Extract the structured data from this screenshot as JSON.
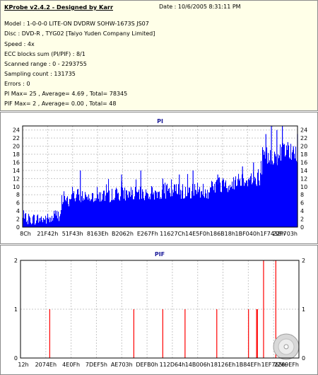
{
  "header": {
    "title": "KProbe v2.4.2 - Designed by Karr",
    "date": "Date : 10/6/2005 8:31:11 PM",
    "lines": [
      "Model : 1-0-0-0 LITE-ON DVDRW SOHW-1673S JS07",
      "Disc : DVD-R , TYG02 [Taiyo Yuden Company Limited]",
      "Speed : 4x",
      "ECC blocks sum (PI/PIF) : 8/1",
      "Scanned range : 0 - 2293755",
      "Sampling count : 131735",
      "Errors : 0",
      "PI Max= 25 , Average= 4.69 , Total= 78345",
      "PIF Max= 2 , Average= 0.00 , Total= 48"
    ]
  },
  "colors": {
    "pi_fill": "#0000ff",
    "pif_bar": "#ff0000",
    "grid": "#c8c8c8",
    "info_bg": "#ffffe8"
  },
  "chart_data": [
    {
      "type": "area",
      "title": "PI",
      "ylim": [
        0,
        25
      ],
      "yticks": [
        0,
        2,
        4,
        6,
        8,
        10,
        12,
        14,
        16,
        18,
        20,
        22,
        24
      ],
      "x_tick_labels": [
        "8Ch",
        "21F42h",
        "51F43h",
        "8163Eh",
        "B2062h",
        "E267Fh",
        "11627Ch",
        "14E5F0h",
        "186B18h",
        "1BF040h",
        "1F7438h",
        "22F703h"
      ],
      "grid": true,
      "segments": [
        {
          "x": [
            0.0,
            0.11
          ],
          "low": 0.5,
          "high": 3.5
        },
        {
          "x": [
            0.11,
            0.14
          ],
          "low": 1.5,
          "high": 4.5
        },
        {
          "x": [
            0.14,
            0.17
          ],
          "low": 5.0,
          "high": 8.0
        },
        {
          "x": [
            0.17,
            0.32
          ],
          "low": 6.0,
          "high": 9.5
        },
        {
          "x": [
            0.32,
            0.5
          ],
          "low": 6.5,
          "high": 10.0
        },
        {
          "x": [
            0.5,
            0.68
          ],
          "low": 7.0,
          "high": 11.0
        },
        {
          "x": [
            0.68,
            0.77
          ],
          "low": 8.5,
          "high": 12.5
        },
        {
          "x": [
            0.77,
            0.87
          ],
          "low": 10.0,
          "high": 14.0
        },
        {
          "x": [
            0.87,
            0.93
          ],
          "low": 15.0,
          "high": 20.0
        },
        {
          "x": [
            0.93,
            1.0
          ],
          "low": 16.0,
          "high": 21.0
        }
      ],
      "spikes": [
        {
          "x": 0.21,
          "y": 14
        },
        {
          "x": 0.36,
          "y": 13
        },
        {
          "x": 0.43,
          "y": 14
        },
        {
          "x": 0.51,
          "y": 12
        },
        {
          "x": 0.57,
          "y": 13
        },
        {
          "x": 0.62,
          "y": 14
        },
        {
          "x": 0.71,
          "y": 13
        },
        {
          "x": 0.8,
          "y": 15
        },
        {
          "x": 0.84,
          "y": 16
        },
        {
          "x": 0.885,
          "y": 23
        },
        {
          "x": 0.905,
          "y": 25
        },
        {
          "x": 0.925,
          "y": 24
        },
        {
          "x": 0.945,
          "y": 25
        },
        {
          "x": 0.965,
          "y": 21
        },
        {
          "x": 0.985,
          "y": 20
        },
        {
          "x": 1.0,
          "y": 23
        }
      ]
    },
    {
      "type": "bar",
      "title": "PIF",
      "ylim": [
        0,
        2
      ],
      "yticks": [
        0,
        1,
        2
      ],
      "x_tick_labels": [
        "12h",
        "2074Eh",
        "4E0Fh",
        "7DEF5h",
        "AE703h",
        "DEFB0h",
        "112D64h",
        "14B006h",
        "18126Eh",
        "1B84EFh",
        "1EF765h",
        "2269EFh"
      ],
      "grid": true,
      "x": [
        0.105,
        0.407,
        0.511,
        0.591,
        0.705,
        0.819,
        0.848,
        0.851,
        0.873,
        0.917
      ],
      "values": [
        1,
        1,
        1,
        1,
        1,
        1,
        1,
        1,
        2,
        2
      ]
    }
  ]
}
